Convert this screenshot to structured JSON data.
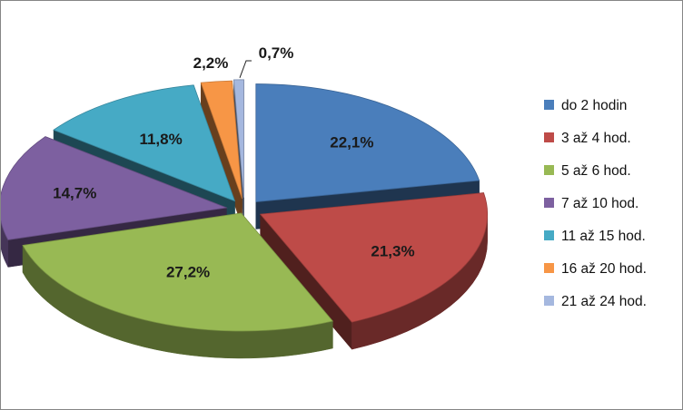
{
  "chart_data": {
    "type": "pie",
    "title": "",
    "categories": [
      "do 2 hodin",
      "3 až 4 hod.",
      "5 až 6 hod.",
      "7 až 10 hod.",
      "11 až 15 hod.",
      "16 až 20 hod.",
      "21 až 24 hod."
    ],
    "values": [
      22.1,
      21.3,
      27.2,
      14.7,
      11.8,
      2.2,
      0.7
    ],
    "data_labels": [
      "22,1%",
      "21,3%",
      "27,2%",
      "14,7%",
      "11,8%",
      "2,2%",
      "0,7%"
    ],
    "colors": [
      "#4A7EBB",
      "#BE4B48",
      "#98B954",
      "#7D60A0",
      "#46AAC5",
      "#F79646",
      "#A5B8DF"
    ],
    "legend_position": "right",
    "style": "3d-exploded"
  }
}
